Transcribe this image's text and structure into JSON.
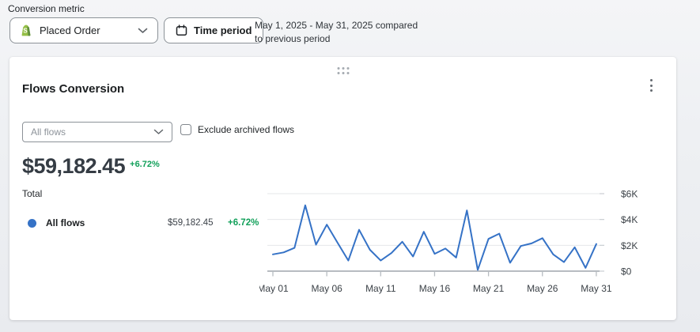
{
  "toolbar": {
    "label": "Conversion metric",
    "metric_select": {
      "value": "Placed Order",
      "icon": "shopify-bag-icon"
    },
    "time_period_label": "Time period",
    "period_summary": "May 1, 2025 - May 31, 2025 compared to previous period"
  },
  "card": {
    "title": "Flows Conversion",
    "flow_select_placeholder": "All flows",
    "exclude_archived_label": "Exclude archived flows",
    "summary": {
      "value": "$59,182.45",
      "change": "+6.72%",
      "label": "Total"
    },
    "legend": [
      {
        "name": "All flows",
        "value": "$59,182.45",
        "change": "+6.72%",
        "color": "#3572c6"
      }
    ]
  },
  "chart_data": {
    "type": "line",
    "categories": [
      "May 01",
      "May 02",
      "May 03",
      "May 04",
      "May 05",
      "May 06",
      "May 07",
      "May 08",
      "May 09",
      "May 10",
      "May 11",
      "May 12",
      "May 13",
      "May 14",
      "May 15",
      "May 16",
      "May 17",
      "May 18",
      "May 19",
      "May 20",
      "May 21",
      "May 22",
      "May 23",
      "May 24",
      "May 25",
      "May 26",
      "May 27",
      "May 28",
      "May 29",
      "May 30",
      "May 31"
    ],
    "series": [
      {
        "name": "All flows",
        "values": [
          1300,
          1450,
          1800,
          5100,
          2050,
          3600,
          2200,
          820,
          3200,
          1650,
          820,
          1400,
          2280,
          1130,
          3050,
          1340,
          1750,
          1050,
          4700,
          100,
          2500,
          2900,
          650,
          1950,
          2150,
          2550,
          1300,
          700,
          1850,
          250,
          2100
        ]
      }
    ],
    "ylim": [
      0,
      6000
    ],
    "y_ticks": [
      0,
      2000,
      4000,
      6000
    ],
    "y_tick_labels": [
      "$0",
      "$2K",
      "$4K",
      "$6K"
    ],
    "x_tick_indices": [
      0,
      5,
      10,
      15,
      20,
      25,
      30
    ],
    "x_tick_labels": [
      "May 01",
      "May 06",
      "May 11",
      "May 16",
      "May 21",
      "May 26",
      "May 31"
    ],
    "grid": true,
    "y_axis_position": "right",
    "legend_position": "left",
    "line_color": "#3572c6"
  },
  "colors": {
    "accent_blue": "#3572c6",
    "positive_green": "#12a05a",
    "card_bg": "#ffffff"
  }
}
